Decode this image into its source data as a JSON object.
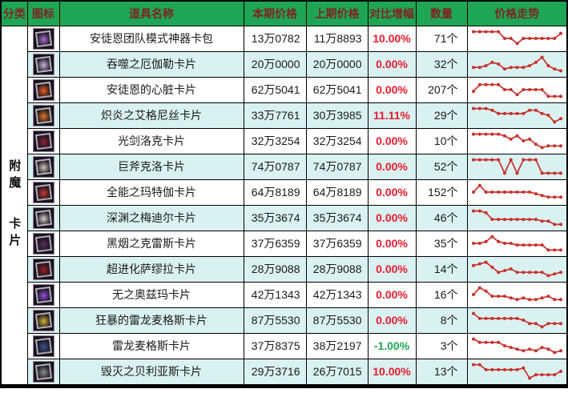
{
  "colors": {
    "header_bg": "#1fa654",
    "header_text": "#7d2424",
    "row_alt": "#d9f2f1",
    "text": "#1a1a1a",
    "positive": "#e81b2d",
    "negative": "#1fa654",
    "spark": "#c9302c"
  },
  "header": {
    "category": "分类",
    "icon": "图标",
    "name": "道具名称",
    "current_price": "本期价格",
    "previous_price": "上期价格",
    "change": "对比增幅",
    "quantity": "数量",
    "trend": "价格走势"
  },
  "category": {
    "line1": "附魔",
    "line2": "卡片"
  },
  "rows": [
    {
      "name": "安徒恩团队模式神器卡包",
      "current": "13万0782",
      "previous": "11万8893",
      "change": "10.00%",
      "dir": "up",
      "count": "71个",
      "icon_color": "#a86fd0",
      "trend": [
        9,
        9,
        9,
        9,
        9,
        5,
        5,
        2,
        5,
        5,
        5,
        5,
        5,
        5,
        8
      ]
    },
    {
      "name": "吞噬之厄伽勒卡片",
      "current": "20万0000",
      "previous": "20万0000",
      "change": "0.00%",
      "dir": "flat",
      "count": "32个",
      "icon_color": "#c9b3e0",
      "trend": [
        3,
        3,
        4,
        6,
        5,
        2,
        3,
        3,
        3,
        4,
        6,
        9,
        4,
        2,
        1
      ]
    },
    {
      "name": "安徒恩的心脏卡片",
      "current": "62万5041",
      "previous": "62万5041",
      "change": "0.00%",
      "dir": "flat",
      "count": "207个",
      "icon_color": "#e85f1a",
      "trend": [
        4,
        8,
        8,
        8,
        8,
        5,
        5,
        2,
        5,
        5,
        5,
        5,
        1,
        1,
        1
      ]
    },
    {
      "name": "炽炎之艾格尼丝卡片",
      "current": "33万7761",
      "previous": "30万3985",
      "change": "11.11%",
      "dir": "up",
      "count": "29个",
      "icon_color": "#e07a28",
      "trend": [
        9,
        9,
        9,
        8,
        6,
        6,
        6,
        6,
        6,
        8,
        8,
        6,
        5,
        1,
        3
      ]
    },
    {
      "name": "光剑洛克卡片",
      "current": "32万3254",
      "previous": "32万3254",
      "change": "0.00%",
      "dir": "flat",
      "count": "10个",
      "icon_color": "#8a2438",
      "trend": [
        9,
        9,
        9,
        9,
        9,
        8,
        6,
        8,
        5,
        6,
        3,
        1,
        2,
        2,
        2
      ]
    },
    {
      "name": "巨斧克洛卡片",
      "current": "74万0787",
      "previous": "74万0787",
      "change": "0.00%",
      "dir": "flat",
      "count": "52个",
      "icon_color": "#cfc6b8",
      "trend": [
        9,
        9,
        9,
        9,
        9,
        1,
        9,
        1,
        9,
        9,
        9,
        1,
        1,
        1,
        1
      ]
    },
    {
      "name": "全能之玛特伽卡片",
      "current": "64万8189",
      "previous": "64万8189",
      "change": "0.00%",
      "dir": "flat",
      "count": "152个",
      "icon_color": "#c23b2e",
      "trend": [
        5,
        9,
        5,
        5,
        5,
        5,
        5,
        5,
        5,
        5,
        4,
        3,
        2,
        2,
        2
      ]
    },
    {
      "name": "深渊之梅迪尔卡片",
      "current": "35万3674",
      "previous": "35万3674",
      "change": "0.00%",
      "dir": "flat",
      "count": "46个",
      "icon_color": "#d8cfc8",
      "trend": [
        9,
        9,
        8,
        4,
        4,
        4,
        4,
        4,
        4,
        4,
        4,
        3,
        3,
        1,
        1
      ]
    },
    {
      "name": "黑烟之克雷斯卡片",
      "current": "37万6359",
      "previous": "37万6359",
      "change": "0.00%",
      "dir": "flat",
      "count": "35个",
      "icon_color": "#5a2d5e",
      "trend": [
        5,
        5,
        6,
        9,
        6,
        5,
        5,
        4,
        4,
        4,
        4,
        4,
        1,
        1,
        1
      ]
    },
    {
      "name": "超进化萨缪拉卡片",
      "current": "28万9088",
      "previous": "28万9088",
      "change": "0.00%",
      "dir": "flat",
      "count": "14个",
      "icon_color": "#99201f",
      "trend": [
        7,
        8,
        9,
        6,
        3,
        4,
        5,
        3,
        3,
        3,
        3,
        3,
        1,
        2,
        3
      ]
    },
    {
      "name": "无之奥兹玛卡片",
      "current": "42万1343",
      "previous": "42万1343",
      "change": "0.00%",
      "dir": "flat",
      "count": "16个",
      "icon_color": "#8e4fd4",
      "trend": [
        5,
        9,
        7,
        4,
        4,
        4,
        3,
        2,
        3,
        2,
        2,
        3,
        4,
        2,
        2
      ]
    },
    {
      "name": "狂暴的雷龙麦格斯卡片",
      "current": "87万5530",
      "previous": "87万5530",
      "change": "0.00%",
      "dir": "flat",
      "count": "8个",
      "icon_color": "#d4b23a",
      "trend": [
        9,
        6,
        6,
        6,
        6,
        6,
        6,
        6,
        5,
        3,
        3,
        1,
        3,
        3,
        3
      ]
    },
    {
      "name": "雷龙麦格斯卡片",
      "current": "37万8375",
      "previous": "38万2197",
      "change": "-1.00%",
      "dir": "down",
      "count": "3个",
      "icon_color": "#3a5388",
      "trend": [
        9,
        7,
        7,
        7,
        7,
        5,
        4,
        3,
        2,
        3,
        2,
        4,
        3,
        1,
        2
      ]
    },
    {
      "name": "毁灭之贝利亚斯卡片",
      "current": "29万3716",
      "previous": "26万7015",
      "change": "10.00%",
      "dir": "up",
      "count": "13个",
      "icon_color": "#8e8e8e",
      "trend": [
        9,
        9,
        6,
        6,
        6,
        6,
        6,
        6,
        7,
        1,
        3,
        3,
        3,
        3,
        5
      ]
    }
  ]
}
